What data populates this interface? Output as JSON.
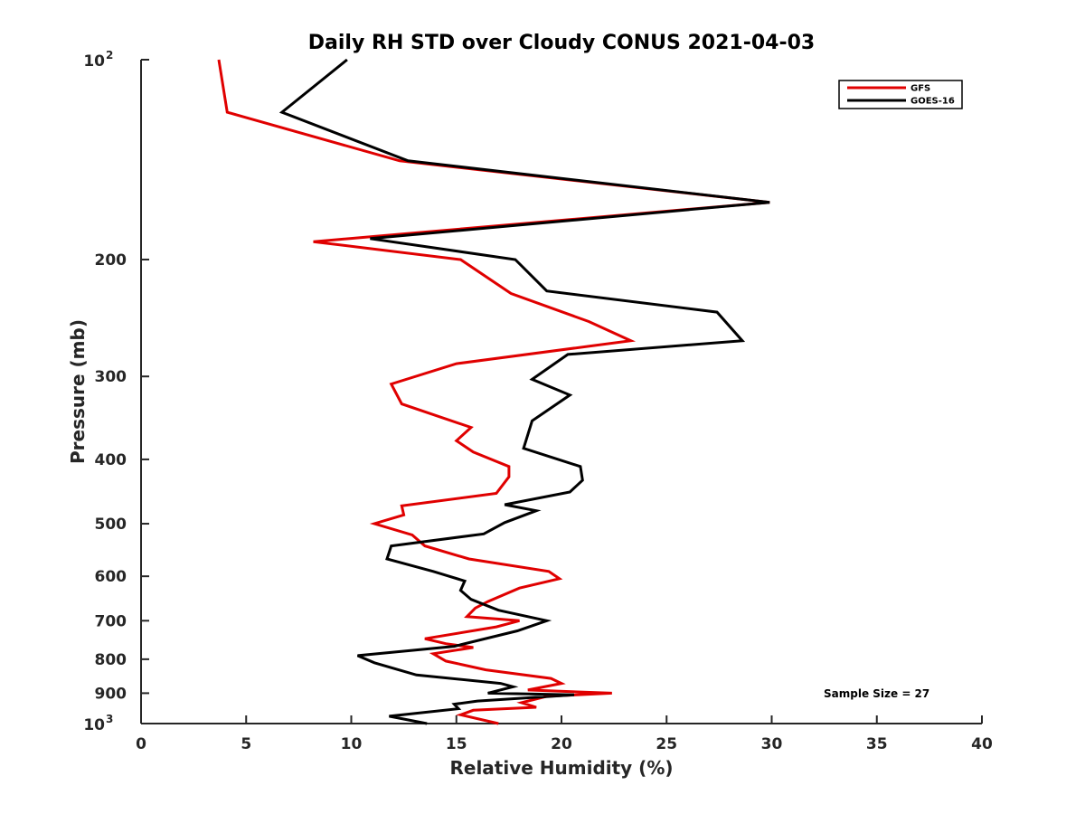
{
  "chart_data": {
    "type": "line",
    "title": "Daily RH STD over Cloudy CONUS 2021-04-03",
    "xlabel": "Relative Humidity (%)",
    "ylabel": "Pressure (mb)",
    "xlim": [
      0,
      40
    ],
    "ylim": [
      1000,
      100
    ],
    "yscale": "log",
    "y_reversed": true,
    "x_ticks": [
      "0",
      "5",
      "10",
      "15",
      "20",
      "25",
      "30",
      "35",
      "40"
    ],
    "y_ticks": [
      {
        "value": 100,
        "base": "10",
        "exp": "2"
      },
      {
        "value": 200,
        "label": "200"
      },
      {
        "value": 300,
        "label": "300"
      },
      {
        "value": 400,
        "label": "400"
      },
      {
        "value": 500,
        "label": "500"
      },
      {
        "value": 600,
        "label": "600"
      },
      {
        "value": 700,
        "label": "700"
      },
      {
        "value": 800,
        "label": "800"
      },
      {
        "value": 900,
        "label": "900"
      },
      {
        "value": 1000,
        "base": "10",
        "exp": "3"
      }
    ],
    "legend_position": "top-right",
    "annotation": "Sample Size = 27",
    "grid": false,
    "series": [
      {
        "name": "GFS",
        "color": "#e00000",
        "points": [
          [
            3.7,
            100
          ],
          [
            4.1,
            120
          ],
          [
            12.3,
            142
          ],
          [
            29.9,
            164
          ],
          [
            8.2,
            188
          ],
          [
            15.2,
            200
          ],
          [
            17.6,
            225
          ],
          [
            21.3,
            248
          ],
          [
            23.3,
            265
          ],
          [
            15.0,
            287
          ],
          [
            11.9,
            308
          ],
          [
            12.4,
            330
          ],
          [
            15.7,
            358
          ],
          [
            15.0,
            375
          ],
          [
            15.8,
            390
          ],
          [
            17.5,
            410
          ],
          [
            17.5,
            425
          ],
          [
            16.9,
            450
          ],
          [
            12.4,
            470
          ],
          [
            12.5,
            485
          ],
          [
            11.1,
            500
          ],
          [
            12.9,
            520
          ],
          [
            13.5,
            540
          ],
          [
            15.6,
            565
          ],
          [
            19.4,
            590
          ],
          [
            19.9,
            605
          ],
          [
            18.0,
            625
          ],
          [
            16.5,
            655
          ],
          [
            15.9,
            670
          ],
          [
            15.5,
            690
          ],
          [
            18.0,
            700
          ],
          [
            16.9,
            715
          ],
          [
            13.5,
            745
          ],
          [
            14.5,
            758
          ],
          [
            15.8,
            768
          ],
          [
            13.9,
            785
          ],
          [
            14.5,
            805
          ],
          [
            16.4,
            830
          ],
          [
            19.5,
            855
          ],
          [
            20.0,
            870
          ],
          [
            18.4,
            890
          ],
          [
            22.4,
            900
          ],
          [
            19.3,
            910
          ],
          [
            18.1,
            930
          ],
          [
            18.8,
            945
          ],
          [
            15.8,
            955
          ],
          [
            15.2,
            970
          ],
          [
            17.0,
            1000
          ]
        ]
      },
      {
        "name": "GOES-16",
        "color": "#000000",
        "points": [
          [
            9.8,
            100
          ],
          [
            6.7,
            120
          ],
          [
            12.7,
            142
          ],
          [
            29.9,
            164
          ],
          [
            10.9,
            186
          ],
          [
            17.8,
            200
          ],
          [
            19.3,
            223
          ],
          [
            27.4,
            240
          ],
          [
            28.6,
            265
          ],
          [
            20.3,
            278
          ],
          [
            18.6,
            303
          ],
          [
            20.4,
            320
          ],
          [
            18.6,
            350
          ],
          [
            18.2,
            385
          ],
          [
            20.9,
            410
          ],
          [
            21.0,
            430
          ],
          [
            20.4,
            448
          ],
          [
            17.3,
            468
          ],
          [
            18.8,
            478
          ],
          [
            17.3,
            498
          ],
          [
            16.3,
            518
          ],
          [
            11.9,
            540
          ],
          [
            11.7,
            565
          ],
          [
            13.9,
            590
          ],
          [
            15.4,
            610
          ],
          [
            15.2,
            630
          ],
          [
            15.7,
            650
          ],
          [
            17.0,
            675
          ],
          [
            19.3,
            700
          ],
          [
            17.9,
            725
          ],
          [
            14.9,
            765
          ],
          [
            10.3,
            790
          ],
          [
            11.1,
            810
          ],
          [
            13.1,
            845
          ],
          [
            17.1,
            870
          ],
          [
            17.7,
            880
          ],
          [
            16.5,
            900
          ],
          [
            20.6,
            905
          ],
          [
            16.0,
            925
          ],
          [
            14.9,
            935
          ],
          [
            15.1,
            950
          ],
          [
            11.8,
            975
          ],
          [
            13.6,
            1000
          ]
        ]
      }
    ]
  }
}
